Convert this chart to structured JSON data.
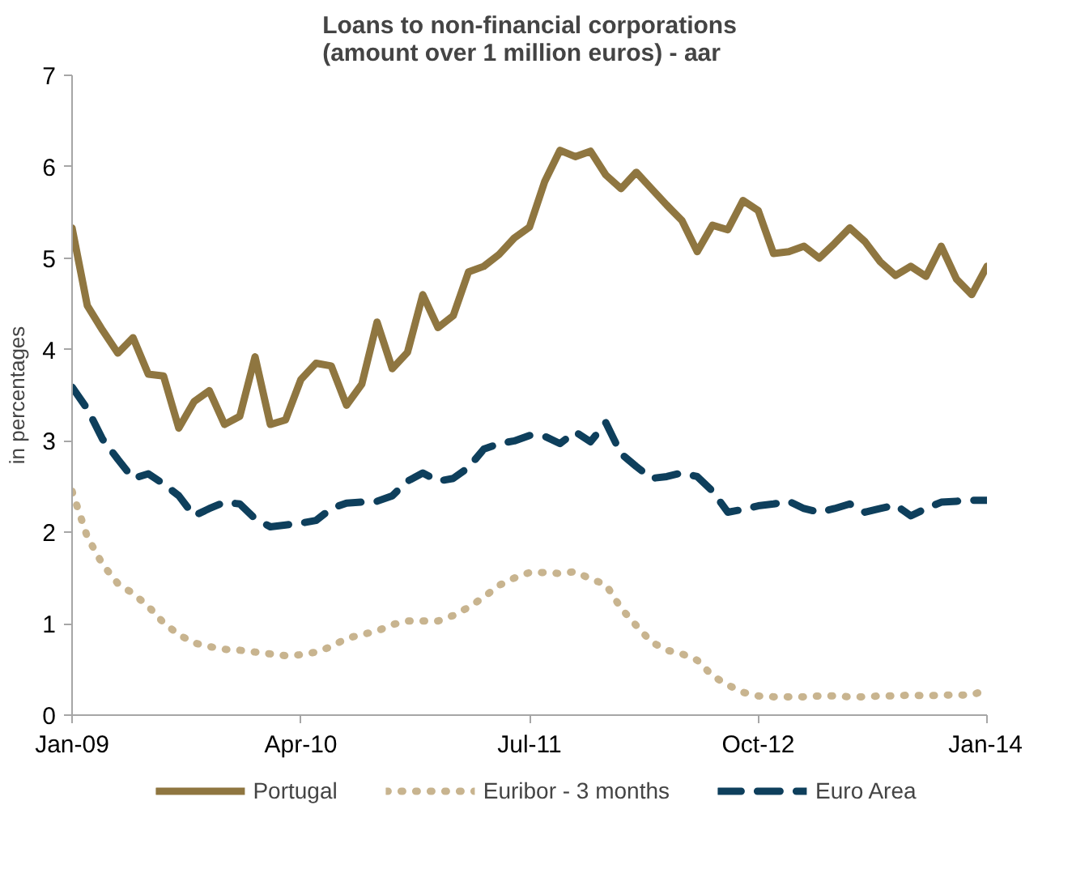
{
  "chart_data": {
    "type": "line",
    "title": "Loans to non-financial corporations\n(amount over 1 million euros) - aar",
    "ylabel": "in percentages",
    "x": [
      "2009-01",
      "2009-02",
      "2009-03",
      "2009-04",
      "2009-05",
      "2009-06",
      "2009-07",
      "2009-08",
      "2009-09",
      "2009-10",
      "2009-11",
      "2009-12",
      "2010-01",
      "2010-02",
      "2010-03",
      "2010-04",
      "2010-05",
      "2010-06",
      "2010-07",
      "2010-08",
      "2010-09",
      "2010-10",
      "2010-11",
      "2010-12",
      "2011-01",
      "2011-02",
      "2011-03",
      "2011-04",
      "2011-05",
      "2011-06",
      "2011-07",
      "2011-08",
      "2011-09",
      "2011-10",
      "2011-11",
      "2011-12",
      "2012-01",
      "2012-02",
      "2012-03",
      "2012-04",
      "2012-05",
      "2012-06",
      "2012-07",
      "2012-08",
      "2012-09",
      "2012-10",
      "2012-11",
      "2012-12",
      "2013-01",
      "2013-02",
      "2013-03",
      "2013-04",
      "2013-05",
      "2013-06",
      "2013-07",
      "2013-08",
      "2013-09",
      "2013-10",
      "2013-11",
      "2013-12",
      "2014-01"
    ],
    "series": [
      {
        "name": "Portugal",
        "color": "#8f7640",
        "line_style": "solid",
        "values": [
          5.33,
          4.48,
          4.21,
          3.96,
          4.13,
          3.73,
          3.71,
          3.14,
          3.43,
          3.55,
          3.18,
          3.27,
          3.92,
          3.18,
          3.23,
          3.67,
          3.85,
          3.82,
          3.39,
          3.62,
          4.3,
          3.79,
          3.97,
          4.6,
          4.24,
          4.37,
          4.85,
          4.91,
          5.04,
          5.22,
          5.34,
          5.84,
          6.18,
          6.11,
          6.17,
          5.91,
          5.76,
          5.94,
          5.76,
          5.58,
          5.41,
          5.07,
          5.36,
          5.31,
          5.63,
          5.52,
          5.05,
          5.07,
          5.13,
          5.0,
          5.16,
          5.33,
          5.18,
          4.96,
          4.81,
          4.91,
          4.8,
          5.13,
          4.77,
          4.6,
          4.91
        ]
      },
      {
        "name": "Euribor - 3 months",
        "color": "#c8b48f",
        "line_style": "dotted",
        "values": [
          2.45,
          1.95,
          1.65,
          1.44,
          1.33,
          1.19,
          1.01,
          0.88,
          0.79,
          0.75,
          0.72,
          0.71,
          0.69,
          0.67,
          0.65,
          0.66,
          0.69,
          0.75,
          0.84,
          0.88,
          0.92,
          0.99,
          1.03,
          1.03,
          1.03,
          1.09,
          1.18,
          1.29,
          1.42,
          1.5,
          1.56,
          1.56,
          1.55,
          1.57,
          1.49,
          1.43,
          1.17,
          0.98,
          0.8,
          0.71,
          0.67,
          0.6,
          0.43,
          0.33,
          0.25,
          0.21,
          0.2,
          0.2,
          0.2,
          0.21,
          0.21,
          0.2,
          0.2,
          0.21,
          0.21,
          0.22,
          0.21,
          0.22,
          0.22,
          0.22,
          0.28
        ]
      },
      {
        "name": "Euro Area",
        "color": "#0e3f5c",
        "line_style": "dashed",
        "values": [
          3.59,
          3.35,
          3.02,
          2.8,
          2.59,
          2.64,
          2.53,
          2.4,
          2.18,
          2.26,
          2.33,
          2.31,
          2.15,
          2.06,
          2.08,
          2.1,
          2.13,
          2.26,
          2.32,
          2.33,
          2.34,
          2.4,
          2.56,
          2.65,
          2.56,
          2.59,
          2.71,
          2.91,
          2.97,
          3.0,
          3.06,
          3.05,
          2.97,
          3.1,
          2.99,
          3.2,
          2.86,
          2.72,
          2.59,
          2.61,
          2.65,
          2.61,
          2.45,
          2.22,
          2.25,
          2.29,
          2.31,
          2.34,
          2.26,
          2.22,
          2.26,
          2.31,
          2.22,
          2.26,
          2.3,
          2.18,
          2.26,
          2.33,
          2.34,
          2.35,
          2.35
        ]
      }
    ],
    "xlim": [
      "2009-01",
      "2014-01"
    ],
    "xticks": [
      {
        "value": "2009-01",
        "label": "Jan-09"
      },
      {
        "value": "2010-04",
        "label": "Apr-10"
      },
      {
        "value": "2011-07",
        "label": "Jul-11"
      },
      {
        "value": "2012-10",
        "label": "Oct-12"
      },
      {
        "value": "2014-01",
        "label": "Jan-14"
      }
    ],
    "ylim": [
      0,
      7
    ],
    "yticks": [
      0,
      1,
      2,
      3,
      4,
      5,
      6,
      7
    ],
    "grid": false,
    "legend": "bottom"
  }
}
